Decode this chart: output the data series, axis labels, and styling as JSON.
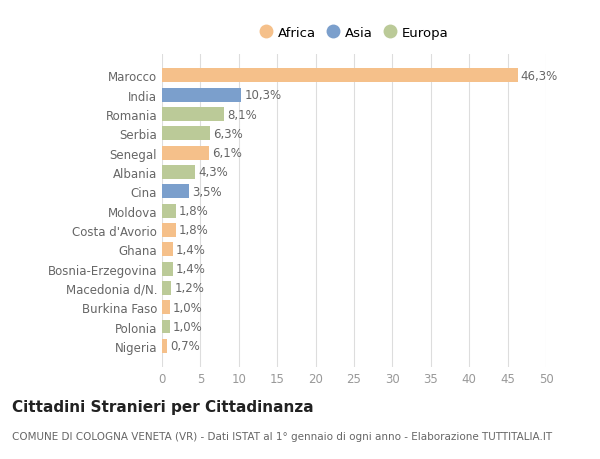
{
  "countries": [
    "Marocco",
    "India",
    "Romania",
    "Serbia",
    "Senegal",
    "Albania",
    "Cina",
    "Moldova",
    "Costa d'Avorio",
    "Ghana",
    "Bosnia-Erzegovina",
    "Macedonia d/N.",
    "Burkina Faso",
    "Polonia",
    "Nigeria"
  ],
  "values": [
    46.3,
    10.3,
    8.1,
    6.3,
    6.1,
    4.3,
    3.5,
    1.8,
    1.8,
    1.4,
    1.4,
    1.2,
    1.0,
    1.0,
    0.7
  ],
  "labels": [
    "46,3%",
    "10,3%",
    "8,1%",
    "6,3%",
    "6,1%",
    "4,3%",
    "3,5%",
    "1,8%",
    "1,8%",
    "1,4%",
    "1,4%",
    "1,2%",
    "1,0%",
    "1,0%",
    "0,7%"
  ],
  "continents": [
    "Africa",
    "Asia",
    "Europa",
    "Europa",
    "Africa",
    "Europa",
    "Asia",
    "Europa",
    "Africa",
    "Africa",
    "Europa",
    "Europa",
    "Africa",
    "Europa",
    "Africa"
  ],
  "continent_colors": {
    "Africa": "#F5C08A",
    "Asia": "#7B9FCC",
    "Europa": "#BBCA98"
  },
  "legend_order": [
    "Africa",
    "Asia",
    "Europa"
  ],
  "xlim": [
    0,
    50
  ],
  "xticks": [
    0,
    5,
    10,
    15,
    20,
    25,
    30,
    35,
    40,
    45,
    50
  ],
  "title": "Cittadini Stranieri per Cittadinanza",
  "subtitle": "COMUNE DI COLOGNA VENETA (VR) - Dati ISTAT al 1° gennaio di ogni anno - Elaborazione TUTTITALIA.IT",
  "bg_color": "#FFFFFF",
  "grid_color": "#DDDDDD",
  "bar_height": 0.72,
  "label_fontsize": 8.5,
  "tick_fontsize": 8.5,
  "title_fontsize": 11,
  "subtitle_fontsize": 7.5,
  "legend_fontsize": 9.5
}
